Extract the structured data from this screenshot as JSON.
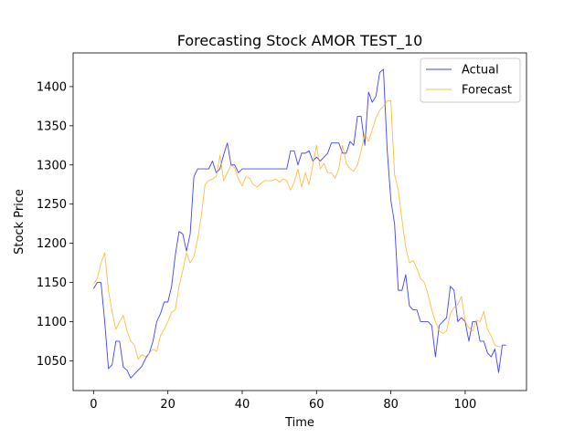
{
  "chart_data": {
    "type": "line",
    "title": "Forecasting Stock AMOR TEST_10",
    "xlabel": "Time",
    "ylabel": "Stock Price",
    "xlim": [
      -5.5,
      116.5
    ],
    "ylim": [
      1012,
      1443
    ],
    "xticks": [
      0,
      20,
      40,
      60,
      80,
      100
    ],
    "yticks": [
      1050,
      1100,
      1150,
      1200,
      1250,
      1300,
      1350,
      1400
    ],
    "grid": false,
    "legend_position": "upper-right",
    "series": [
      {
        "name": "Actual",
        "color": "#0000ff",
        "values": [
          1142,
          1150,
          1150,
          1100,
          1040,
          1045,
          1075,
          1075,
          1042,
          1038,
          1028,
          1033,
          1038,
          1043,
          1053,
          1060,
          1075,
          1100,
          1110,
          1125,
          1125,
          1145,
          1185,
          1215,
          1212,
          1190,
          1212,
          1285,
          1295,
          1295,
          1295,
          1295,
          1305,
          1290,
          1295,
          1313,
          1328,
          1300,
          1300,
          1290,
          1295,
          1295,
          1295,
          1295,
          1295,
          1295,
          1295,
          1295,
          1295,
          1295,
          1295,
          1295,
          1295,
          1318,
          1318,
          1300,
          1315,
          1315,
          1318,
          1305,
          1310,
          1305,
          1310,
          1315,
          1328,
          1328,
          1328,
          1315,
          1315,
          1330,
          1325,
          1362,
          1362,
          1325,
          1393,
          1380,
          1388,
          1418,
          1422,
          1320,
          1255,
          1225,
          1140,
          1140,
          1160,
          1120,
          1115,
          1115,
          1100,
          1100,
          1100,
          1095,
          1055,
          1095,
          1100,
          1105,
          1145,
          1140,
          1100,
          1105,
          1100,
          1075,
          1100,
          1100,
          1075,
          1075,
          1060,
          1055,
          1065,
          1035,
          1070,
          1070
        ]
      },
      {
        "name": "Forecast",
        "color": "#ffa500",
        "values": [
          1148,
          1155,
          1175,
          1188,
          1140,
          1112,
          1090,
          1100,
          1108,
          1088,
          1075,
          1070,
          1052,
          1058,
          1055,
          1060,
          1065,
          1062,
          1082,
          1090,
          1100,
          1112,
          1115,
          1145,
          1165,
          1188,
          1175,
          1183,
          1205,
          1235,
          1275,
          1280,
          1282,
          1285,
          1312,
          1280,
          1290,
          1300,
          1296,
          1282,
          1273,
          1285,
          1283,
          1275,
          1272,
          1276,
          1280,
          1280,
          1280,
          1282,
          1278,
          1282,
          1280,
          1268,
          1278,
          1295,
          1272,
          1290,
          1275,
          1300,
          1325,
          1295,
          1302,
          1290,
          1290,
          1283,
          1295,
          1325,
          1302,
          1295,
          1292,
          1300,
          1318,
          1340,
          1330,
          1345,
          1360,
          1370,
          1375,
          1382,
          1382,
          1288,
          1268,
          1230,
          1195,
          1175,
          1178,
          1168,
          1155,
          1150,
          1135,
          1115,
          1100,
          1088,
          1085,
          1088,
          1110,
          1118,
          1122,
          1132,
          1100,
          1092,
          1088,
          1102,
          1100,
          1113,
          1090,
          1082,
          1070,
          1068,
          1068
        ]
      }
    ]
  }
}
